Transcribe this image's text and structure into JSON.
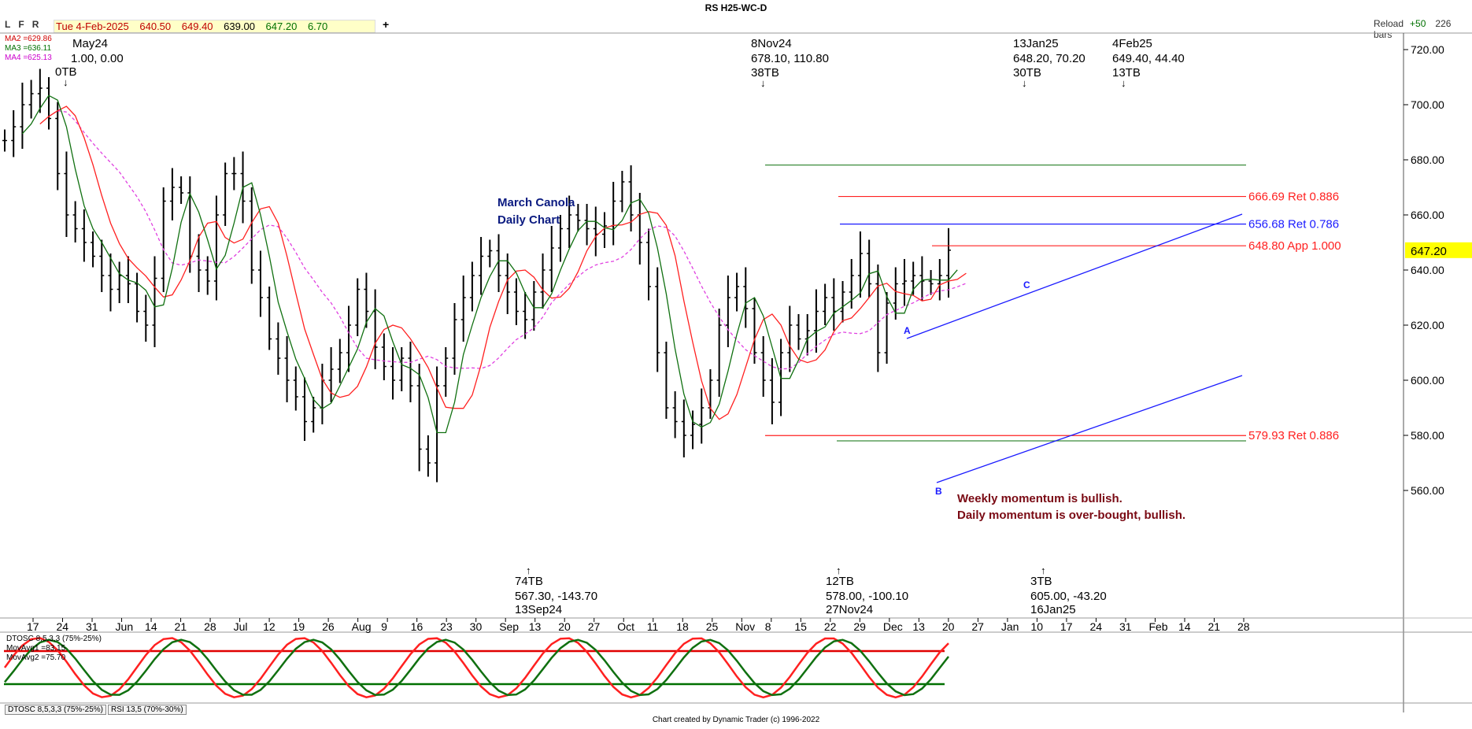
{
  "header": {
    "title": "RS H25-WC-D",
    "tool_letters": [
      "L",
      "F",
      "R"
    ],
    "quote": {
      "date": "Tue 4-Feb-2025",
      "open": "640.50",
      "high": "649.40",
      "low": "639.00",
      "close": "647.20",
      "change": "6.70"
    },
    "reload_label": "Reload",
    "reload_plus": "+50",
    "bars_count": "226 bars",
    "add_button": "+"
  },
  "ma_legend": [
    {
      "label": "MA2 =629.86",
      "color": "#d00000"
    },
    {
      "label": "MA3 =636.11",
      "color": "#007000"
    },
    {
      "label": "MA4 =625.13",
      "color": "#cc00cc"
    }
  ],
  "chart_title": [
    "March Canola",
    "Daily Chart"
  ],
  "commentary": [
    "Weekly momentum is bullish.",
    "Daily momentum is over-bought, bullish."
  ],
  "colors": {
    "ma2": "#ff2020",
    "ma3": "#107010",
    "ma4": "#e040e0",
    "blue": "#1a1aff",
    "red": "#ff2020",
    "green": "#3a8a3a",
    "accent_yellow": "#ffff00"
  },
  "chart_data": {
    "type": "ohlc-bar",
    "price_axis": {
      "min": 550,
      "max": 730,
      "ticks": [
        "720.00",
        "700.00",
        "680.00",
        "660.00",
        "640.00",
        "620.00",
        "600.00",
        "580.00",
        "560.00"
      ]
    },
    "last_price": "647.20",
    "date_ticks": [
      "17",
      "24",
      "31",
      "Jun",
      "14",
      "21",
      "28",
      "Jul",
      "12",
      "19",
      "26",
      "Aug",
      "9",
      "16",
      "23",
      "30",
      "Sep",
      "13",
      "20",
      "27",
      "Oct",
      "11",
      "18",
      "25",
      "Nov",
      "8",
      "15",
      "22",
      "29",
      "Dec",
      "13",
      "20",
      "27",
      "Jan",
      "10",
      "17",
      "24",
      "31",
      "Feb",
      "14",
      "21",
      "28"
    ],
    "close_path": [
      687,
      692,
      700,
      704,
      706,
      695,
      675,
      660,
      655,
      650,
      645,
      638,
      633,
      638,
      635,
      625,
      620,
      637,
      665,
      670,
      668,
      645,
      640,
      636,
      660,
      675,
      675,
      665,
      640,
      630,
      615,
      608,
      600,
      594,
      585,
      590,
      600,
      604,
      610,
      620,
      633,
      625,
      612,
      605,
      600,
      608,
      598,
      575,
      570,
      598,
      608,
      622,
      630,
      638,
      645,
      647,
      638,
      632,
      625,
      622,
      632,
      640,
      648,
      655,
      660,
      658,
      655,
      653,
      656,
      665,
      672,
      660,
      650,
      634,
      610,
      590,
      585,
      580,
      584,
      590,
      600,
      620,
      630,
      634,
      626,
      610,
      600,
      592,
      610,
      620,
      615,
      618,
      625,
      630,
      625,
      632,
      638,
      646,
      635,
      610,
      628,
      635,
      636,
      638,
      636,
      635,
      638,
      647.2
    ],
    "annotations": {
      "highs": [
        {
          "date": "May24",
          "values": "1.00, 0.00",
          "tb": "0TB"
        },
        {
          "date": "8Nov24",
          "values": "678.10, 110.80",
          "tb": "38TB"
        },
        {
          "date": "13Jan25",
          "values": "648.20, 70.20",
          "tb": "30TB"
        },
        {
          "date": "4Feb25",
          "values": "649.40, 44.40",
          "tb": "13TB"
        }
      ],
      "lows": [
        {
          "tb": "74TB",
          "values": "567.30, -143.70",
          "date": "13Sep24"
        },
        {
          "tb": "12TB",
          "values": "578.00, -100.10",
          "date": "27Nov24"
        },
        {
          "tb": "3TB",
          "values": "605.00, -43.20",
          "date": "16Jan25"
        }
      ],
      "pattern_labels": [
        "A",
        "B",
        "C"
      ]
    },
    "levels": [
      {
        "label": "666.69 Ret 0.886",
        "price": 666.69,
        "color": "#ff2020"
      },
      {
        "label": "656.68 Ret 0.786",
        "price": 656.68,
        "color": "#1a1aff"
      },
      {
        "label": "648.80 App 1.000",
        "price": 648.8,
        "color": "#ff2020"
      },
      {
        "label": "579.93 Ret 0.886",
        "price": 579.93,
        "color": "#ff2020"
      }
    ],
    "range_lines": [
      678.1,
      578.0
    ]
  },
  "oscillator": {
    "title": "DTOSC 8,5,3,3 (75%-25%)",
    "mov1_label": "MovAvg1 =83.15",
    "mov2_label": "MovAvg2 =75.70",
    "upper": 75,
    "lower": 25
  },
  "tabs": [
    "DTOSC 8,5,3,3 (75%-25%)",
    "RSI 13,5 (70%-30%)"
  ],
  "footer": "Chart created by Dynamic Trader  (c) 1996-2022"
}
